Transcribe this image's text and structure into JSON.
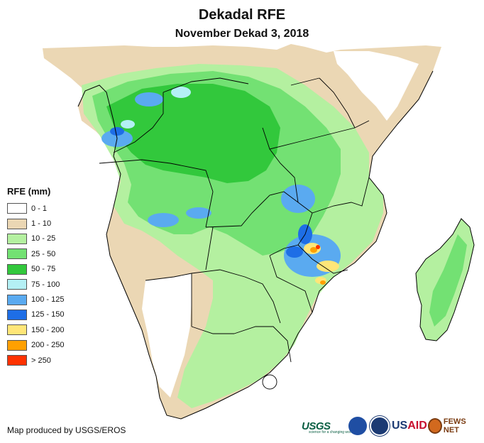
{
  "header": {
    "title": "Dekadal RFE",
    "subtitle": "November Dekad 3, 2018"
  },
  "legend": {
    "title": "RFE (mm)",
    "items": [
      {
        "label": "0 - 1",
        "color": "#ffffff"
      },
      {
        "label": "1 - 10",
        "color": "#ebd7b4"
      },
      {
        "label": "10 - 25",
        "color": "#b4f0a0"
      },
      {
        "label": "25 - 50",
        "color": "#73e173"
      },
      {
        "label": "50 - 75",
        "color": "#32c83c"
      },
      {
        "label": "75 - 100",
        "color": "#b4f0f5"
      },
      {
        "label": "100 - 125",
        "color": "#5aaaf0"
      },
      {
        "label": "125 - 150",
        "color": "#1e6ee6"
      },
      {
        "label": "150 - 200",
        "color": "#ffe678"
      },
      {
        "label": "200 - 250",
        "color": "#ffa000"
      },
      {
        "label": "> 250",
        "color": "#ff3200"
      }
    ]
  },
  "footer": {
    "credit": "Map produced by USGS/EROS"
  },
  "logos": {
    "usgs": "USGS",
    "usgs_tagline": "science for a changing world",
    "usaid_prefix": "US",
    "usaid_suffix": "AID",
    "fews": "FEWS NET"
  }
}
